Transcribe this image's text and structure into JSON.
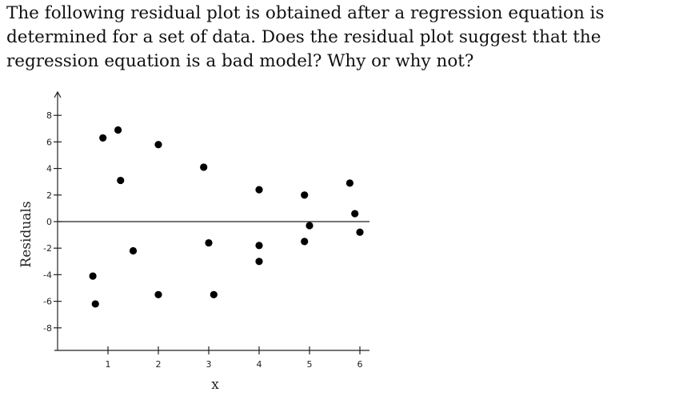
{
  "question": {
    "text": "The following residual plot is obtained after a regression equation is determined for a set of data. Does the residual plot suggest that the regression equation is a bad model? Why or why not?"
  },
  "chart_data": {
    "type": "scatter",
    "title": "",
    "xlabel": "x",
    "ylabel": "Residuals",
    "xlim": [
      0,
      6.2
    ],
    "ylim": [
      -9,
      9
    ],
    "x_ticks": [
      1,
      2,
      3,
      4,
      5,
      6
    ],
    "y_ticks": [
      -8,
      -6,
      -4,
      -2,
      0,
      2,
      4,
      6,
      8
    ],
    "reference_line_y": 0,
    "grid": false,
    "points": [
      {
        "x": 0.7,
        "y": -4.1
      },
      {
        "x": 0.75,
        "y": -6.2
      },
      {
        "x": 0.9,
        "y": 6.3
      },
      {
        "x": 1.2,
        "y": 6.9
      },
      {
        "x": 1.25,
        "y": 3.1
      },
      {
        "x": 1.5,
        "y": -2.2
      },
      {
        "x": 2.0,
        "y": 5.8
      },
      {
        "x": 2.0,
        "y": -5.5
      },
      {
        "x": 2.9,
        "y": 4.1
      },
      {
        "x": 3.0,
        "y": -1.6
      },
      {
        "x": 3.1,
        "y": -5.5
      },
      {
        "x": 4.0,
        "y": 2.4
      },
      {
        "x": 4.0,
        "y": -1.8
      },
      {
        "x": 4.0,
        "y": -3.0
      },
      {
        "x": 4.9,
        "y": 2.0
      },
      {
        "x": 4.9,
        "y": -1.5
      },
      {
        "x": 5.0,
        "y": -0.3
      },
      {
        "x": 5.8,
        "y": 2.9
      },
      {
        "x": 5.9,
        "y": 0.6
      },
      {
        "x": 6.0,
        "y": -0.8
      }
    ]
  }
}
